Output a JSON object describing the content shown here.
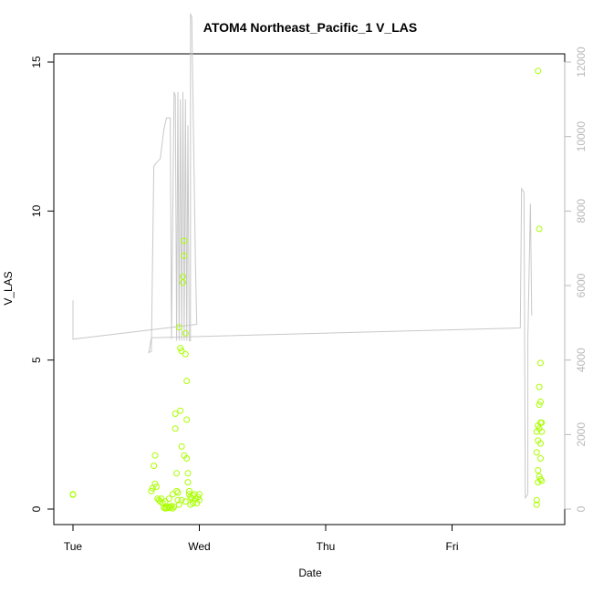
{
  "chart_data": {
    "type": "scatter",
    "title": "ATOM4 Northeast_Pacific_1 V_LAS",
    "xlabel": "Date",
    "ylabel": "V_LAS",
    "x_categories": [
      "Tue",
      "Wed",
      "Thu",
      "Fri"
    ],
    "ylim": [
      0,
      15
    ],
    "y_ticks": [
      0,
      5,
      10,
      15
    ],
    "y2lim": [
      0,
      12000
    ],
    "y2_ticks": [
      0,
      2000,
      4000,
      6000,
      8000,
      10000,
      12000
    ],
    "grid": false,
    "colors": {
      "points": "#aaff00",
      "line": "#c8c8c8",
      "axis": "#000000",
      "right_axis": "#b8b8b8"
    },
    "series": [
      {
        "kind": "points",
        "axis": "left",
        "values": [
          [
            0.0,
            0.5
          ],
          [
            0.0,
            0.48
          ],
          [
            0.62,
            0.6
          ],
          [
            0.63,
            0.7
          ],
          [
            0.65,
            0.85
          ],
          [
            0.66,
            0.75
          ],
          [
            0.64,
            1.45
          ],
          [
            0.65,
            1.8
          ],
          [
            0.67,
            0.35
          ],
          [
            0.68,
            0.3
          ],
          [
            0.69,
            0.25
          ],
          [
            0.7,
            0.35
          ],
          [
            0.71,
            0.2
          ],
          [
            0.72,
            0.05
          ],
          [
            0.73,
            0.02
          ],
          [
            0.74,
            0.03
          ],
          [
            0.75,
            0.05
          ],
          [
            0.76,
            0.08
          ],
          [
            0.77,
            0.04
          ],
          [
            0.78,
            0.1
          ],
          [
            0.79,
            0.02
          ],
          [
            0.8,
            0.08
          ],
          [
            0.81,
            2.7
          ],
          [
            0.81,
            3.2
          ],
          [
            0.82,
            1.2
          ],
          [
            0.82,
            0.6
          ],
          [
            0.83,
            0.3
          ],
          [
            0.84,
            0.15
          ],
          [
            0.84,
            6.1
          ],
          [
            0.85,
            3.3
          ],
          [
            0.85,
            5.4
          ],
          [
            0.86,
            5.3
          ],
          [
            0.86,
            2.1
          ],
          [
            0.87,
            7.6
          ],
          [
            0.87,
            7.8
          ],
          [
            0.88,
            8.5
          ],
          [
            0.88,
            9.0
          ],
          [
            0.88,
            1.8
          ],
          [
            0.89,
            5.2
          ],
          [
            0.89,
            5.9
          ],
          [
            0.9,
            4.3
          ],
          [
            0.9,
            3.0
          ],
          [
            0.9,
            1.7
          ],
          [
            0.91,
            1.2
          ],
          [
            0.91,
            0.9
          ],
          [
            0.92,
            0.6
          ],
          [
            0.92,
            0.5
          ],
          [
            0.93,
            0.4
          ],
          [
            0.94,
            0.35
          ],
          [
            0.95,
            0.45
          ],
          [
            0.96,
            0.5
          ],
          [
            0.97,
            0.35
          ],
          [
            0.98,
            0.2
          ],
          [
            0.99,
            0.4
          ],
          [
            1.0,
            0.5
          ],
          [
            1.0,
            0.3
          ],
          [
            0.73,
            0.25
          ],
          [
            0.76,
            0.35
          ],
          [
            0.79,
            0.5
          ],
          [
            0.83,
            0.55
          ],
          [
            0.86,
            0.3
          ],
          [
            0.89,
            0.25
          ],
          [
            0.93,
            0.15
          ],
          [
            0.95,
            0.2
          ],
          [
            3.68,
            14.7
          ],
          [
            3.69,
            9.4
          ],
          [
            3.7,
            4.9
          ],
          [
            3.69,
            4.1
          ],
          [
            3.7,
            3.6
          ],
          [
            3.69,
            3.5
          ],
          [
            3.68,
            2.8
          ],
          [
            3.7,
            2.9
          ],
          [
            3.71,
            2.9
          ],
          [
            3.69,
            2.7
          ],
          [
            3.67,
            2.6
          ],
          [
            3.68,
            2.3
          ],
          [
            3.7,
            2.2
          ],
          [
            3.71,
            2.6
          ],
          [
            3.67,
            1.9
          ],
          [
            3.7,
            1.7
          ],
          [
            3.68,
            1.3
          ],
          [
            3.69,
            1.1
          ],
          [
            3.7,
            1.0
          ],
          [
            3.71,
            0.95
          ],
          [
            3.68,
            0.9
          ],
          [
            3.67,
            0.3
          ],
          [
            3.67,
            0.15
          ]
        ]
      },
      {
        "kind": "line",
        "axis": "right",
        "values": [
          [
            0.0,
            5600
          ],
          [
            0.0,
            4560
          ],
          [
            0.98,
            4960
          ],
          [
            0.97,
            6500
          ],
          [
            0.94,
            13200
          ],
          [
            0.93,
            13300
          ],
          [
            0.93,
            4520
          ],
          [
            0.92,
            4520
          ],
          [
            0.91,
            10300
          ],
          [
            0.9,
            4520
          ],
          [
            0.89,
            11000
          ],
          [
            0.88,
            4520
          ],
          [
            0.87,
            11200
          ],
          [
            0.86,
            4520
          ],
          [
            0.85,
            11000
          ],
          [
            0.84,
            4520
          ],
          [
            0.83,
            11200
          ],
          [
            0.82,
            4520
          ],
          [
            0.81,
            11100
          ],
          [
            0.8,
            11200
          ],
          [
            0.78,
            4560
          ],
          [
            0.77,
            10500
          ],
          [
            0.74,
            10500
          ],
          [
            0.72,
            10200
          ],
          [
            0.69,
            9400
          ],
          [
            0.66,
            9300
          ],
          [
            0.64,
            9200
          ],
          [
            0.62,
            4240
          ],
          [
            0.6,
            4200
          ],
          [
            0.62,
            4600
          ],
          [
            3.54,
            4860
          ],
          [
            3.55,
            8600
          ],
          [
            3.57,
            8500
          ],
          [
            3.58,
            300
          ],
          [
            3.6,
            400
          ],
          [
            3.6,
            4600
          ],
          [
            3.62,
            8200
          ],
          [
            3.63,
            5200
          ]
        ]
      }
    ]
  }
}
